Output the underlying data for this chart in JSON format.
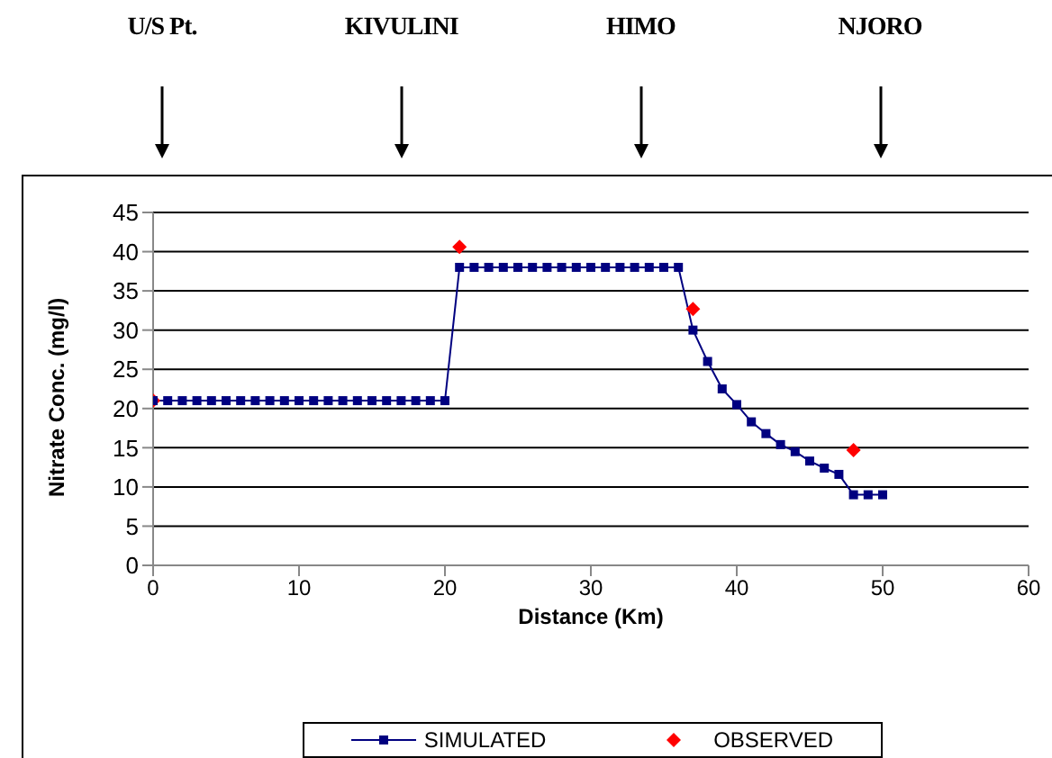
{
  "chart_data": {
    "type": "line",
    "xlabel": "Distance (Km)",
    "ylabel": "Nitrate Conc. (mg/l)",
    "annotations": [
      "U/S Pt.",
      "KIVULINI",
      "HIMO",
      "NJORO"
    ],
    "series": [
      {
        "name": "SIMULATED",
        "color": "#000080",
        "marker": "square",
        "x": [
          0,
          1,
          2,
          3,
          4,
          5,
          6,
          7,
          8,
          9,
          10,
          11,
          12,
          13,
          14,
          15,
          16,
          17,
          18,
          19,
          20,
          21,
          22,
          23,
          24,
          25,
          26,
          27,
          28,
          29,
          30,
          31,
          32,
          33,
          34,
          35,
          36,
          37,
          38,
          39,
          40,
          41,
          42,
          43,
          44,
          45,
          46,
          47,
          48,
          49,
          50
        ],
        "values": [
          21,
          21,
          21,
          21,
          21,
          21,
          21,
          21,
          21,
          21,
          21,
          21,
          21,
          21,
          21,
          21,
          21,
          21,
          21,
          21,
          21,
          38,
          38,
          38,
          38,
          38,
          38,
          38,
          38,
          38,
          38,
          38,
          38,
          38,
          38,
          38,
          38,
          30,
          26,
          22.5,
          20.5,
          18.3,
          16.8,
          15.4,
          14.5,
          13.3,
          12.4,
          11.6,
          9,
          9,
          9
        ]
      },
      {
        "name": "OBSERVED",
        "type": "scatter",
        "color": "#ff0000",
        "marker": "diamond",
        "x": [
          0,
          21,
          37,
          48
        ],
        "values": [
          21,
          40.6,
          32.7,
          14.7
        ]
      }
    ],
    "xlim": [
      0,
      60
    ],
    "xticks": [
      0,
      10,
      20,
      30,
      40,
      50,
      60
    ],
    "ylim": [
      0,
      45
    ],
    "yticks": [
      0,
      5,
      10,
      15,
      20,
      25,
      30,
      35,
      40,
      45
    ],
    "grid": "y",
    "legend": "bottom"
  }
}
